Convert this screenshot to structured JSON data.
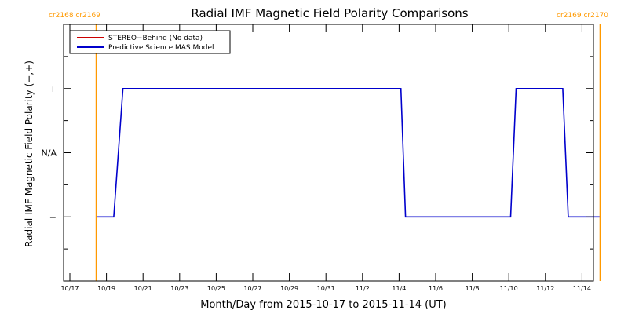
{
  "chart_data": {
    "type": "line",
    "title": "Radial IMF Magnetic Field Polarity Comparisons",
    "xlabel": "Month/Day from 2015-10-17 to 2015-11-14 (UT)",
    "ylabel": "Radial IMF Magnetic Field Polarity (−,+)",
    "xlim": [
      0,
      28
    ],
    "ylim": [
      -2,
      2
    ],
    "x_ticks": [
      {
        "x": 0,
        "label": "10/17"
      },
      {
        "x": 2,
        "label": "10/19"
      },
      {
        "x": 4,
        "label": "10/21"
      },
      {
        "x": 6,
        "label": "10/23"
      },
      {
        "x": 8,
        "label": "10/25"
      },
      {
        "x": 10,
        "label": "10/27"
      },
      {
        "x": 12,
        "label": "10/29"
      },
      {
        "x": 14,
        "label": "10/31"
      },
      {
        "x": 16,
        "label": "11/2"
      },
      {
        "x": 18,
        "label": "11/4"
      },
      {
        "x": 20,
        "label": "11/6"
      },
      {
        "x": 22,
        "label": "11/8"
      },
      {
        "x": 24,
        "label": "11/10"
      },
      {
        "x": 26,
        "label": "11/12"
      },
      {
        "x": 28,
        "label": "11/14"
      }
    ],
    "y_ticks": [
      {
        "y": 1,
        "label": "+"
      },
      {
        "y": 0,
        "label": "N/A"
      },
      {
        "y": -1,
        "label": "−"
      }
    ],
    "legend": {
      "placement": "top-left",
      "entries": [
        {
          "name": "STEREO−Behind (No data)",
          "color": "#cc0000"
        },
        {
          "name": "Predictive Science MAS Model",
          "color": "#0000cc"
        }
      ]
    },
    "series": [
      {
        "name": "Predictive Science MAS Model",
        "color": "#0000cc",
        "points": [
          [
            1.45,
            -1
          ],
          [
            2.4,
            -1
          ],
          [
            2.9,
            1
          ],
          [
            18.1,
            1
          ],
          [
            18.35,
            -1
          ],
          [
            24.1,
            -1
          ],
          [
            24.4,
            1
          ],
          [
            26.95,
            1
          ],
          [
            27.25,
            -1
          ],
          [
            29.0,
            -1
          ]
        ]
      }
    ],
    "rotation_markers": {
      "color": "#ff9900",
      "lines": [
        {
          "x": 1.45,
          "labels": [
            "cr2168",
            "cr2169"
          ],
          "side": "left"
        },
        {
          "x": 29.0,
          "labels": [
            "cr2169",
            "cr2170"
          ],
          "side": "right"
        }
      ]
    }
  }
}
